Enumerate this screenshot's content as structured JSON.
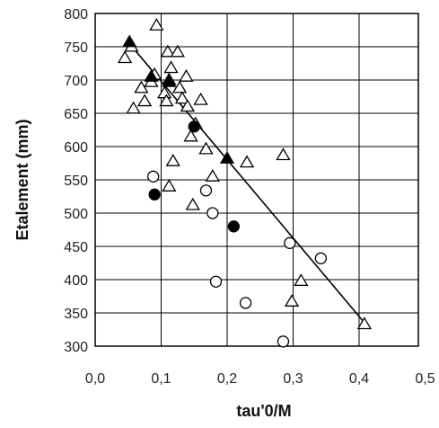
{
  "chart_data": {
    "type": "scatter",
    "title": "",
    "xlabel": "tau'0/M",
    "ylabel": "Etalement (mm)",
    "xlim": [
      0.0,
      0.4
    ],
    "ylim": [
      300,
      800
    ],
    "grid": true,
    "x_ticks": [
      "0,0",
      "0,1",
      "0,2",
      "0,3",
      "0,4",
      "0,5"
    ],
    "y_ticks": [
      "300",
      "350",
      "400",
      "450",
      "500",
      "550",
      "600",
      "650",
      "700",
      "750",
      "800"
    ],
    "series": [
      {
        "marker": "open-triangle",
        "points": [
          [
            0.045,
            733
          ],
          [
            0.055,
            750
          ],
          [
            0.058,
            657
          ],
          [
            0.07,
            688
          ],
          [
            0.075,
            668
          ],
          [
            0.085,
            697
          ],
          [
            0.09,
            708
          ],
          [
            0.093,
            782
          ],
          [
            0.105,
            680
          ],
          [
            0.108,
            668
          ],
          [
            0.11,
            742
          ],
          [
            0.112,
            700
          ],
          [
            0.115,
            718
          ],
          [
            0.118,
            578
          ],
          [
            0.112,
            540
          ],
          [
            0.125,
            742
          ],
          [
            0.128,
            688
          ],
          [
            0.132,
            672
          ],
          [
            0.138,
            705
          ],
          [
            0.14,
            660
          ],
          [
            0.145,
            615
          ],
          [
            0.148,
            512
          ],
          [
            0.152,
            634
          ],
          [
            0.16,
            670
          ],
          [
            0.168,
            596
          ],
          [
            0.178,
            555
          ],
          [
            0.23,
            576
          ],
          [
            0.285,
            587
          ],
          [
            0.298,
            367
          ],
          [
            0.312,
            398
          ],
          [
            0.408,
            333
          ]
        ]
      },
      {
        "marker": "filled-triangle",
        "points": [
          [
            0.052,
            757
          ],
          [
            0.085,
            705
          ],
          [
            0.112,
            697
          ],
          [
            0.2,
            582
          ]
        ]
      },
      {
        "marker": "filled-circle",
        "points": [
          [
            0.09,
            528
          ],
          [
            0.15,
            630
          ],
          [
            0.21,
            480
          ]
        ]
      },
      {
        "marker": "open-circle",
        "points": [
          [
            0.088,
            555
          ],
          [
            0.168,
            534
          ],
          [
            0.178,
            500
          ],
          [
            0.183,
            397
          ],
          [
            0.228,
            365
          ],
          [
            0.285,
            307
          ],
          [
            0.295,
            455
          ],
          [
            0.342,
            432
          ]
        ]
      }
    ],
    "trendline": {
      "x": [
        0.05,
        0.41
      ],
      "y": [
        757,
        333
      ]
    }
  }
}
